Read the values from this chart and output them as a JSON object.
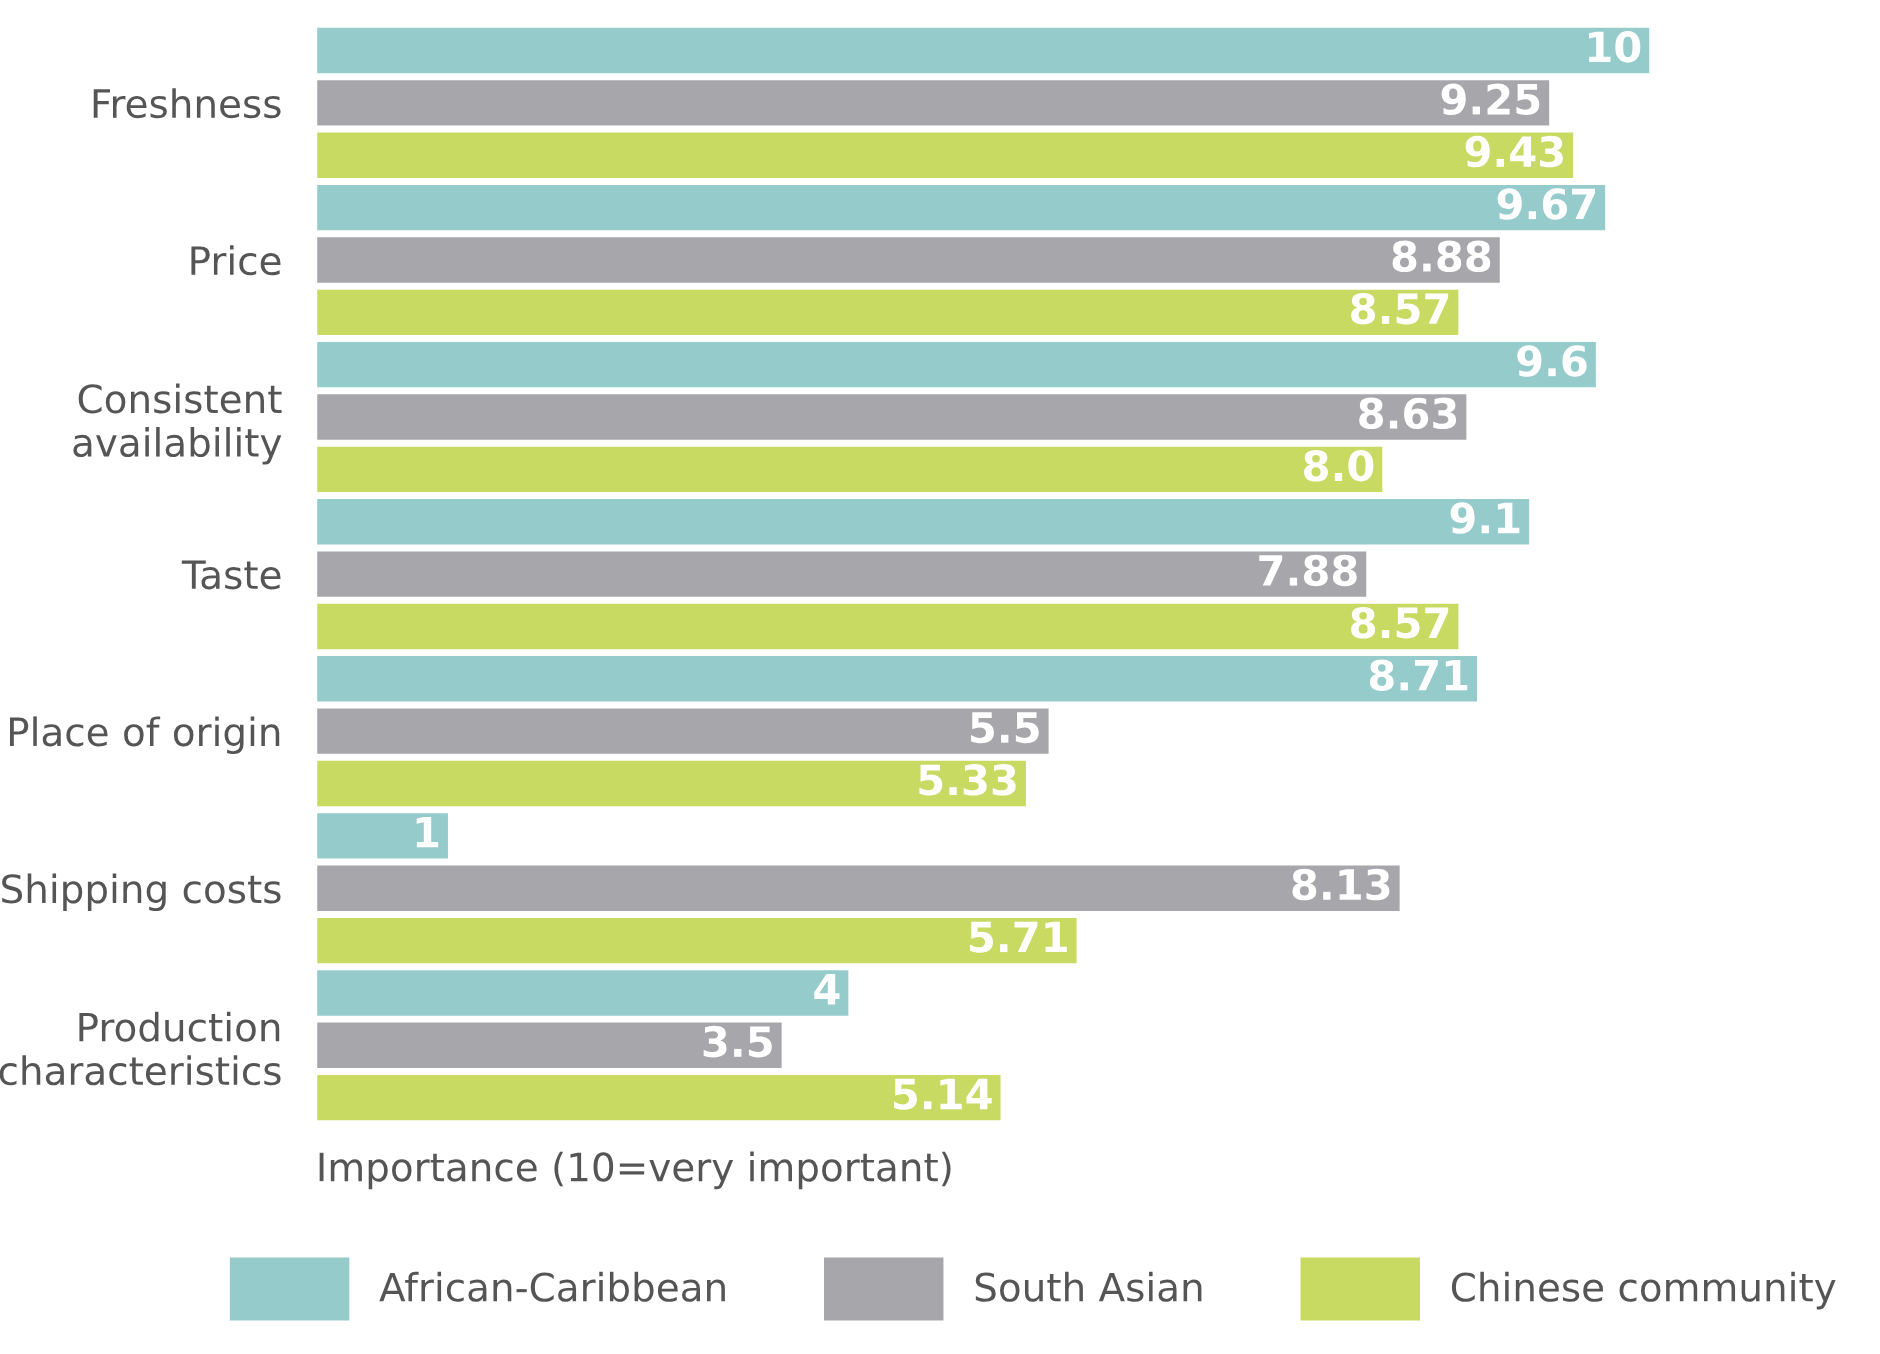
{
  "chart_data": {
    "type": "bar",
    "orientation": "horizontal",
    "categories": [
      "Freshness",
      "Price",
      "Consistent\navailability",
      "Taste",
      "Place of origin",
      "Shipping costs",
      "Production\ncharacteristics"
    ],
    "series": [
      {
        "name": "African-Caribbean",
        "color": "#96cbcb",
        "values": [
          10,
          9.67,
          9.6,
          9.1,
          8.71,
          1,
          4
        ],
        "value_labels": [
          "10",
          "9.67",
          "9.6",
          "9.1",
          "8.71",
          "1",
          "4"
        ]
      },
      {
        "name": "South Asian",
        "color": "#a7a6ab",
        "values": [
          9.25,
          8.88,
          8.63,
          7.88,
          5.5,
          8.13,
          3.5
        ],
        "value_labels": [
          "9.25",
          "8.88",
          "8.63",
          "7.88",
          "5.5",
          "8.13",
          "3.5"
        ]
      },
      {
        "name": "Chinese community",
        "color": "#c9da63",
        "values": [
          9.43,
          8.57,
          8.0,
          8.57,
          5.33,
          5.71,
          5.14
        ],
        "value_labels": [
          "9.43",
          "8.57",
          "8.0",
          "8.57",
          "5.33",
          "5.71",
          "5.14"
        ]
      }
    ],
    "xlabel": "Importance (10=very important)",
    "tick_labels": "y",
    "grid": false,
    "legend": "bottom"
  }
}
